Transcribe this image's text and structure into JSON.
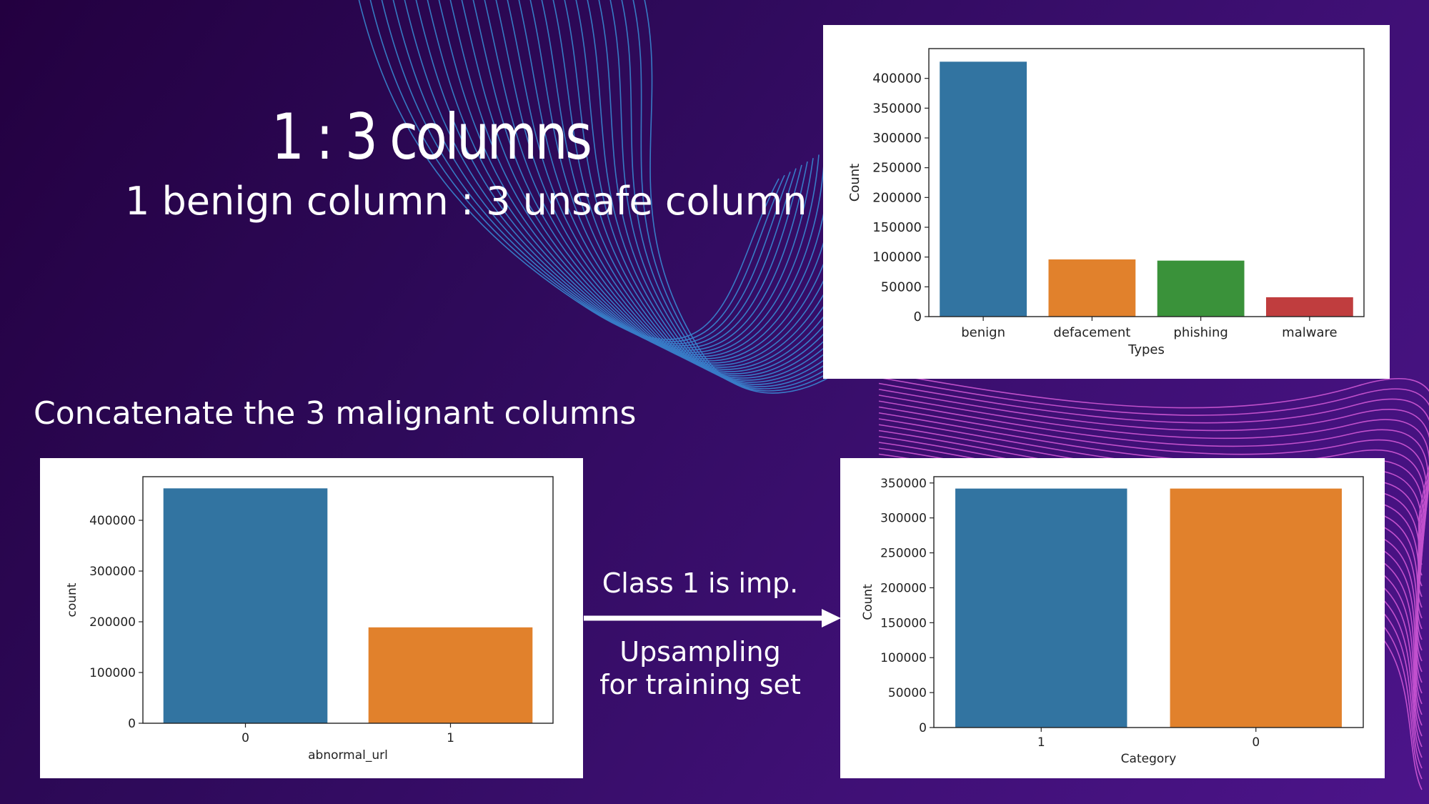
{
  "slide": {
    "title": "1 : 3 columns",
    "subtitle": "1 benign column : 3 unsafe column",
    "caption": "Concatenate the 3 malignant columns",
    "note_class": "Class 1 is imp.",
    "note_upsampling_line1": "Upsampling",
    "note_upsampling_line2": "for training set"
  },
  "colors": {
    "background": "#2e0a5a",
    "wave_blue": "#3aa0e8",
    "wave_pink": "#e060e0",
    "bar_blue": "#3274a1",
    "bar_orange": "#e1812c",
    "bar_green": "#3a923a",
    "bar_red": "#c03d3e"
  },
  "chart_data": [
    {
      "type": "bar",
      "categories": [
        "benign",
        "defacement",
        "phishing",
        "malware"
      ],
      "values": [
        428000,
        96000,
        94000,
        32500
      ],
      "bar_colors": [
        "#3274a1",
        "#e1812c",
        "#3a923a",
        "#c03d3e"
      ],
      "xlabel": "Types",
      "ylabel": "Count",
      "ylim": [
        0,
        450000
      ],
      "yticks": [
        0,
        50000,
        100000,
        150000,
        200000,
        250000,
        300000,
        350000,
        400000
      ],
      "grid": false
    },
    {
      "type": "bar",
      "categories": [
        "0",
        "1"
      ],
      "values": [
        463000,
        189000
      ],
      "bar_colors": [
        "#3274a1",
        "#e1812c"
      ],
      "xlabel": "abnormal_url",
      "ylabel": "count",
      "ylim": [
        0,
        486000
      ],
      "yticks": [
        0,
        100000,
        200000,
        300000,
        400000
      ],
      "grid": false
    },
    {
      "type": "bar",
      "categories": [
        "1",
        "0"
      ],
      "values": [
        342000,
        342000
      ],
      "bar_colors": [
        "#3274a1",
        "#e1812c"
      ],
      "xlabel": "Category",
      "ylabel": "Count",
      "ylim": [
        0,
        359000
      ],
      "yticks": [
        0,
        50000,
        100000,
        150000,
        200000,
        250000,
        300000,
        350000
      ],
      "grid": false
    }
  ]
}
